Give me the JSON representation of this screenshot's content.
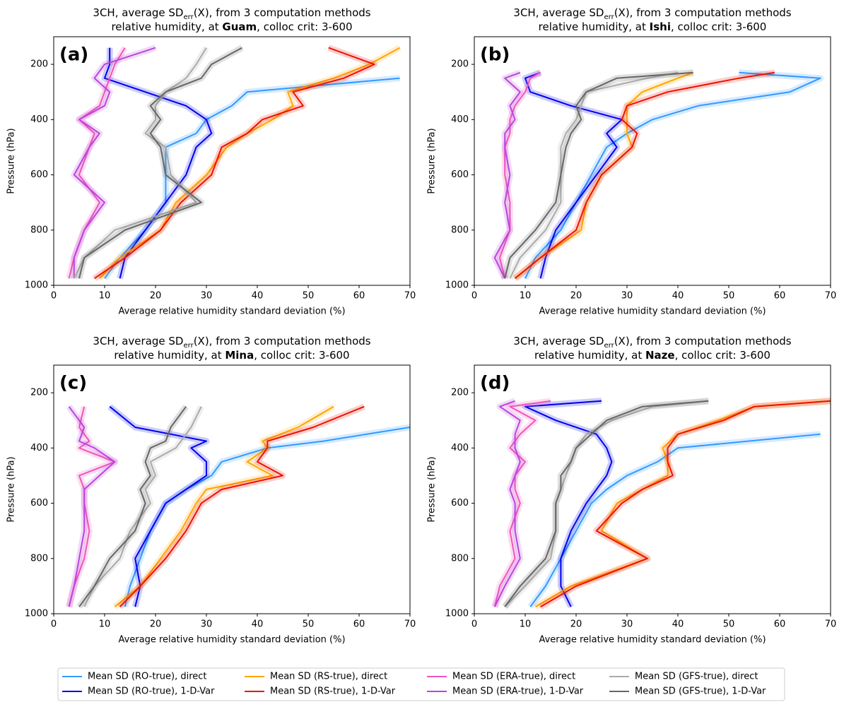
{
  "chart_data": [
    {
      "type": "line",
      "title": [
        "3CH, average SD",
        "err",
        "(X), from 3 computation methods"
      ],
      "subtitle": [
        "relative humidity, at ",
        "Guam",
        ", colloc crit: 3-600"
      ],
      "panel_label": "(a)",
      "xlabel": "Average relative humidity standard deviation (%)",
      "ylabel": "Pressure (hPa)",
      "xlim": [
        0,
        70
      ],
      "ylim": [
        1000,
        100
      ],
      "xticks": [
        0,
        10,
        20,
        30,
        40,
        50,
        60,
        70
      ],
      "yticks": [
        200,
        400,
        600,
        800,
        1000
      ],
      "y": [
        140,
        200,
        250,
        300,
        350,
        400,
        450,
        500,
        600,
        700,
        800,
        900,
        975
      ],
      "series": [
        {
          "name": "Mean SD (RO-true), direct",
          "color": "#3399ff",
          "values": [
            null,
            null,
            68,
            38,
            35,
            30,
            28,
            22,
            22,
            22,
            18,
            13,
            10
          ]
        },
        {
          "name": "Mean SD (RO-true), 1-D-Var",
          "color": "#0000ee",
          "values": [
            11,
            11,
            10,
            18,
            26,
            30,
            31,
            28,
            26,
            22,
            18,
            14,
            13
          ]
        },
        {
          "name": "Mean SD (RS-true), direct",
          "color": "#ffa500",
          "values": [
            68,
            62,
            55,
            46,
            47,
            43,
            38,
            34,
            30,
            24,
            21,
            13,
            9
          ]
        },
        {
          "name": "Mean SD (RS-true), 1-D-Var",
          "color": "#ee1100",
          "values": [
            54,
            63,
            57,
            47,
            49,
            41,
            38,
            33,
            31,
            25,
            21,
            14,
            8
          ]
        },
        {
          "name": "Mean SD (ERA-true), direct",
          "color": "#ee55bb",
          "values": [
            14,
            12,
            11,
            10,
            9,
            5,
            8,
            7,
            5,
            9,
            6,
            4,
            3
          ]
        },
        {
          "name": "Mean SD (ERA-true), 1-D-Var",
          "color": "#bb44dd",
          "values": [
            20,
            10,
            8,
            11,
            10,
            5,
            9,
            7,
            4,
            10,
            6,
            4,
            4
          ]
        },
        {
          "name": "Mean SD (GFS-true), direct",
          "color": "#aaaaaa",
          "values": [
            30,
            28,
            26,
            22,
            20,
            20,
            18,
            22,
            23,
            28,
            12,
            6,
            4
          ]
        },
        {
          "name": "Mean SD (GFS-true), 1-D-Var",
          "color": "#666666",
          "values": [
            37,
            31,
            29,
            22,
            19,
            21,
            19,
            21,
            22,
            29,
            14,
            6,
            5
          ]
        }
      ]
    },
    {
      "type": "line",
      "title": [
        "3CH, average SD",
        "err",
        "(X), from 3 computation methods"
      ],
      "subtitle": [
        "relative humidity, at ",
        "Ishi",
        ", colloc crit: 3-600"
      ],
      "panel_label": "(b)",
      "xlabel": "Average relative humidity standard deviation (%)",
      "ylabel": "Pressure (hPa)",
      "xlim": [
        0,
        70
      ],
      "ylim": [
        1000,
        100
      ],
      "xticks": [
        0,
        10,
        20,
        30,
        40,
        50,
        60,
        70
      ],
      "yticks": [
        200,
        400,
        600,
        800,
        1000
      ],
      "y": [
        230,
        250,
        300,
        350,
        400,
        450,
        500,
        600,
        700,
        800,
        900,
        975
      ],
      "series": [
        {
          "color": "#3399ff",
          "values": [
            52,
            68,
            62,
            44,
            35,
            30,
            26,
            23,
            20,
            17,
            12,
            10
          ]
        },
        {
          "color": "#0000ee",
          "values": [
            13,
            10,
            11,
            19,
            29,
            26,
            28,
            24,
            20,
            16,
            14,
            13
          ]
        },
        {
          "color": "#ffa500",
          "values": [
            43,
            40,
            33,
            30,
            30,
            30,
            31,
            25,
            22,
            21,
            13,
            8
          ]
        },
        {
          "color": "#ee1100",
          "values": [
            59,
            52,
            38,
            30,
            29,
            32,
            31,
            25,
            22,
            20,
            13,
            8
          ]
        },
        {
          "color": "#ee55bb",
          "values": [
            13,
            11,
            10,
            8,
            7,
            7,
            6,
            6,
            7,
            7,
            5,
            6
          ]
        },
        {
          "color": "#bb44dd",
          "values": [
            9,
            6,
            9,
            7,
            8,
            6,
            6,
            7,
            6,
            7,
            4,
            6
          ]
        },
        {
          "color": "#aaaaaa",
          "values": [
            40,
            34,
            22,
            21,
            20,
            18,
            17,
            17,
            17,
            14,
            9,
            7
          ]
        },
        {
          "color": "#666666",
          "values": [
            43,
            28,
            22,
            20,
            21,
            19,
            18,
            17,
            16,
            12,
            7,
            6
          ]
        }
      ]
    },
    {
      "type": "line",
      "title": [
        "3CH, average SD",
        "err",
        "(X), from 3 computation methods"
      ],
      "subtitle": [
        "relative humidity, at ",
        "Mina",
        ", colloc crit: 3-600"
      ],
      "panel_label": "(c)",
      "xlabel": "Average relative humidity standard deviation (%)",
      "ylabel": "Pressure (hPa)",
      "xlim": [
        0,
        70
      ],
      "ylim": [
        1000,
        100
      ],
      "xticks": [
        0,
        10,
        20,
        30,
        40,
        50,
        60,
        70
      ],
      "yticks": [
        200,
        400,
        600,
        800,
        1000
      ],
      "y": [
        250,
        325,
        375,
        400,
        450,
        500,
        550,
        600,
        700,
        800,
        900,
        975
      ],
      "series": [
        {
          "color": "#3399ff",
          "values": [
            null,
            70,
            53,
            42,
            33,
            31,
            26,
            22,
            19,
            17,
            15,
            14
          ]
        },
        {
          "color": "#0000ee",
          "values": [
            11,
            16,
            30,
            27,
            30,
            30,
            26,
            22,
            19,
            16,
            17,
            16
          ]
        },
        {
          "color": "#ffa500",
          "values": [
            55,
            48,
            41,
            42,
            38,
            43,
            30,
            28,
            25,
            21,
            17,
            12
          ]
        },
        {
          "color": "#ee1100",
          "values": [
            61,
            51,
            42,
            42,
            40,
            45,
            33,
            29,
            26,
            22,
            17,
            13
          ]
        },
        {
          "color": "#ee55bb",
          "values": [
            6,
            5,
            7,
            5,
            12,
            5,
            6,
            6,
            7,
            6,
            4,
            3
          ]
        },
        {
          "color": "#bb44dd",
          "values": [
            3,
            6,
            5,
            8,
            12,
            9,
            6,
            6,
            6,
            5,
            4,
            3
          ]
        },
        {
          "color": "#aaaaaa",
          "values": [
            29,
            27,
            25,
            24,
            19,
            20,
            18,
            19,
            15,
            13,
            8,
            6
          ]
        },
        {
          "color": "#666666",
          "values": [
            26,
            23,
            22,
            19,
            18,
            19,
            17,
            18,
            16,
            11,
            8,
            5
          ]
        }
      ]
    },
    {
      "type": "line",
      "title": [
        "3CH, average SD",
        "err",
        "(X), from 3 computation methods"
      ],
      "subtitle": [
        "relative humidity, at ",
        "Naze",
        ", colloc crit: 3-600"
      ],
      "panel_label": "(d)",
      "xlabel": "Average relative humidity standard deviation (%)",
      "ylabel": "Pressure (hPa)",
      "xlim": [
        0,
        70
      ],
      "ylim": [
        1000,
        100
      ],
      "xticks": [
        0,
        10,
        20,
        30,
        40,
        50,
        60,
        70
      ],
      "yticks": [
        200,
        400,
        600,
        800,
        1000
      ],
      "y": [
        230,
        250,
        300,
        350,
        400,
        450,
        500,
        550,
        600,
        700,
        800,
        900,
        975
      ],
      "series": [
        {
          "color": "#3399ff",
          "values": [
            null,
            null,
            null,
            68,
            40,
            36,
            30,
            26,
            23,
            20,
            17,
            14,
            11
          ]
        },
        {
          "color": "#0000ee",
          "values": [
            25,
            10,
            16,
            24,
            26,
            27,
            26,
            24,
            22,
            19,
            17,
            17,
            19
          ]
        },
        {
          "color": "#ffa500",
          "values": [
            70,
            55,
            48,
            40,
            37,
            38,
            38,
            33,
            28,
            25,
            34,
            19,
            12
          ]
        },
        {
          "color": "#ee1100",
          "values": [
            70,
            55,
            49,
            40,
            38,
            38,
            39,
            33,
            29,
            24,
            34,
            20,
            13
          ]
        },
        {
          "color": "#ee55bb",
          "values": [
            15,
            7,
            12,
            9,
            7,
            10,
            8,
            8,
            9,
            7,
            8,
            5,
            4
          ]
        },
        {
          "color": "#bb44dd",
          "values": [
            8,
            5,
            9,
            8,
            8,
            9,
            8,
            7,
            8,
            8,
            9,
            6,
            4
          ]
        },
        {
          "color": "#aaaaaa",
          "values": [
            46,
            35,
            27,
            22,
            20,
            19,
            18,
            17,
            16,
            16,
            15,
            10,
            6
          ]
        },
        {
          "color": "#666666",
          "values": [
            46,
            33,
            26,
            23,
            20,
            19,
            17,
            17,
            16,
            16,
            14,
            9,
            6
          ]
        }
      ]
    }
  ]
}
